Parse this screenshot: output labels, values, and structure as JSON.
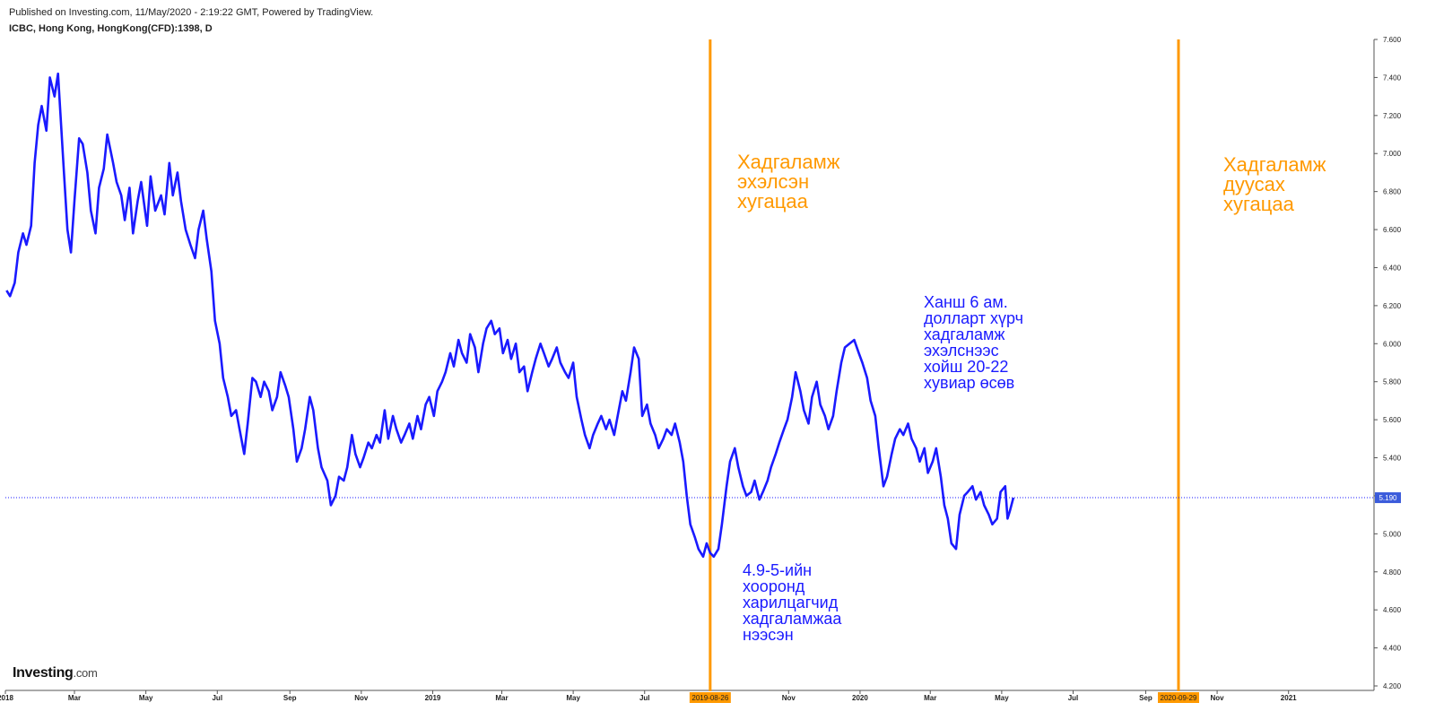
{
  "header": {
    "published": "Published on Investing.com, 11/May/2020 - 2:19:22 GMT, Powered by TradingView.",
    "symbol": "ICBC, Hong Kong, HongKong(CFD):1398, D"
  },
  "logo": {
    "main": "Investing",
    "suffix": ".com"
  },
  "colors": {
    "price_line": "#1a1aff",
    "event_line": "#ff9900",
    "last_price_badge": "#3b5bdb"
  },
  "chart_data": {
    "type": "line",
    "ylim": [
      4.2,
      7.6
    ],
    "xlim": [
      "2018-01-01",
      "2021-03-15"
    ],
    "grid": false,
    "y_ticks": [
      "7.600",
      "7.400",
      "7.200",
      "7.000",
      "6.800",
      "6.600",
      "6.400",
      "6.200",
      "6.000",
      "5.800",
      "5.600",
      "5.400",
      "5.200",
      "5.000",
      "4.800",
      "4.600",
      "4.400",
      "4.200"
    ],
    "x_ticks": [
      {
        "label": "2018",
        "date": "2018-01-01"
      },
      {
        "label": "Mar",
        "date": "2018-03-01"
      },
      {
        "label": "May",
        "date": "2018-05-01"
      },
      {
        "label": "Jul",
        "date": "2018-07-01"
      },
      {
        "label": "Sep",
        "date": "2018-09-01"
      },
      {
        "label": "Nov",
        "date": "2018-11-01"
      },
      {
        "label": "2019",
        "date": "2019-01-01"
      },
      {
        "label": "Mar",
        "date": "2019-03-01"
      },
      {
        "label": "May",
        "date": "2019-05-01"
      },
      {
        "label": "Jul",
        "date": "2019-07-01"
      },
      {
        "label": "Nov",
        "date": "2019-11-01"
      },
      {
        "label": "2020",
        "date": "2020-01-01"
      },
      {
        "label": "Mar",
        "date": "2020-03-01"
      },
      {
        "label": "May",
        "date": "2020-05-01"
      },
      {
        "label": "Jul",
        "date": "2020-07-01"
      },
      {
        "label": "Sep",
        "date": "2020-09-01"
      },
      {
        "label": "Nov",
        "date": "2020-11-01"
      },
      {
        "label": "2021",
        "date": "2021-01-01"
      }
    ],
    "last_price": {
      "value": 5.19,
      "label": "5.190"
    },
    "events": [
      {
        "date": "2019-08-26",
        "label": "2019-08-26",
        "text": "Хадгаламж\nэхэлсэн\nхугацаа"
      },
      {
        "date": "2020-09-29",
        "label": "2020-09-29",
        "text": "Хадгаламж\nдуусах\nхугацаа"
      }
    ],
    "annotations": [
      {
        "text": "4.9-5-ийн\nхооронд\nхарилцагчид\nхадгаламжаа\nнээсэн"
      },
      {
        "text": "Ханш 6 ам.\nдолларт хүрч\nхадгаламж\nэхэлснээс\nхойш 20-22\nхувиар өсөв"
      }
    ],
    "series": [
      {
        "points": [
          [
            "2018-01-02",
            6.28
          ],
          [
            "2018-01-05",
            6.25
          ],
          [
            "2018-01-09",
            6.32
          ],
          [
            "2018-01-12",
            6.48
          ],
          [
            "2018-01-16",
            6.58
          ],
          [
            "2018-01-19",
            6.52
          ],
          [
            "2018-01-23",
            6.62
          ],
          [
            "2018-01-26",
            6.95
          ],
          [
            "2018-01-29",
            7.15
          ],
          [
            "2018-02-01",
            7.25
          ],
          [
            "2018-02-05",
            7.12
          ],
          [
            "2018-02-08",
            7.4
          ],
          [
            "2018-02-12",
            7.3
          ],
          [
            "2018-02-15",
            7.42
          ],
          [
            "2018-02-20",
            6.9
          ],
          [
            "2018-02-23",
            6.6
          ],
          [
            "2018-02-26",
            6.48
          ],
          [
            "2018-03-01",
            6.75
          ],
          [
            "2018-03-05",
            7.08
          ],
          [
            "2018-03-08",
            7.05
          ],
          [
            "2018-03-12",
            6.9
          ],
          [
            "2018-03-15",
            6.7
          ],
          [
            "2018-03-19",
            6.58
          ],
          [
            "2018-03-22",
            6.82
          ],
          [
            "2018-03-26",
            6.92
          ],
          [
            "2018-03-29",
            7.1
          ],
          [
            "2018-04-03",
            6.95
          ],
          [
            "2018-04-06",
            6.85
          ],
          [
            "2018-04-10",
            6.78
          ],
          [
            "2018-04-13",
            6.65
          ],
          [
            "2018-04-17",
            6.82
          ],
          [
            "2018-04-20",
            6.58
          ],
          [
            "2018-04-24",
            6.75
          ],
          [
            "2018-04-27",
            6.85
          ],
          [
            "2018-05-02",
            6.62
          ],
          [
            "2018-05-05",
            6.88
          ],
          [
            "2018-05-09",
            6.7
          ],
          [
            "2018-05-14",
            6.78
          ],
          [
            "2018-05-17",
            6.68
          ],
          [
            "2018-05-21",
            6.95
          ],
          [
            "2018-05-24",
            6.78
          ],
          [
            "2018-05-28",
            6.9
          ],
          [
            "2018-05-31",
            6.75
          ],
          [
            "2018-06-04",
            6.6
          ],
          [
            "2018-06-08",
            6.52
          ],
          [
            "2018-06-12",
            6.45
          ],
          [
            "2018-06-15",
            6.6
          ],
          [
            "2018-06-19",
            6.7
          ],
          [
            "2018-06-22",
            6.55
          ],
          [
            "2018-06-26",
            6.38
          ],
          [
            "2018-06-29",
            6.12
          ],
          [
            "2018-07-03",
            6.0
          ],
          [
            "2018-07-06",
            5.82
          ],
          [
            "2018-07-10",
            5.72
          ],
          [
            "2018-07-13",
            5.62
          ],
          [
            "2018-07-17",
            5.65
          ],
          [
            "2018-07-20",
            5.55
          ],
          [
            "2018-07-24",
            5.42
          ],
          [
            "2018-07-27",
            5.58
          ],
          [
            "2018-07-31",
            5.82
          ],
          [
            "2018-08-03",
            5.8
          ],
          [
            "2018-08-07",
            5.72
          ],
          [
            "2018-08-10",
            5.8
          ],
          [
            "2018-08-14",
            5.75
          ],
          [
            "2018-08-17",
            5.65
          ],
          [
            "2018-08-21",
            5.72
          ],
          [
            "2018-08-24",
            5.85
          ],
          [
            "2018-08-28",
            5.78
          ],
          [
            "2018-08-31",
            5.72
          ],
          [
            "2018-09-04",
            5.55
          ],
          [
            "2018-09-07",
            5.38
          ],
          [
            "2018-09-11",
            5.45
          ],
          [
            "2018-09-14",
            5.55
          ],
          [
            "2018-09-18",
            5.72
          ],
          [
            "2018-09-21",
            5.65
          ],
          [
            "2018-09-25",
            5.45
          ],
          [
            "2018-09-28",
            5.35
          ],
          [
            "2018-10-03",
            5.28
          ],
          [
            "2018-10-06",
            5.15
          ],
          [
            "2018-10-10",
            5.2
          ],
          [
            "2018-10-13",
            5.3
          ],
          [
            "2018-10-17",
            5.28
          ],
          [
            "2018-10-20",
            5.35
          ],
          [
            "2018-10-24",
            5.52
          ],
          [
            "2018-10-27",
            5.42
          ],
          [
            "2018-10-31",
            5.35
          ],
          [
            "2018-11-03",
            5.4
          ],
          [
            "2018-11-07",
            5.48
          ],
          [
            "2018-11-10",
            5.45
          ],
          [
            "2018-11-14",
            5.52
          ],
          [
            "2018-11-17",
            5.48
          ],
          [
            "2018-11-21",
            5.65
          ],
          [
            "2018-11-24",
            5.5
          ],
          [
            "2018-11-28",
            5.62
          ],
          [
            "2018-12-01",
            5.55
          ],
          [
            "2018-12-05",
            5.48
          ],
          [
            "2018-12-08",
            5.52
          ],
          [
            "2018-12-12",
            5.58
          ],
          [
            "2018-12-15",
            5.5
          ],
          [
            "2018-12-19",
            5.62
          ],
          [
            "2018-12-22",
            5.55
          ],
          [
            "2018-12-26",
            5.68
          ],
          [
            "2018-12-29",
            5.72
          ],
          [
            "2019-01-02",
            5.62
          ],
          [
            "2019-01-05",
            5.75
          ],
          [
            "2019-01-09",
            5.8
          ],
          [
            "2019-01-12",
            5.85
          ],
          [
            "2019-01-16",
            5.95
          ],
          [
            "2019-01-19",
            5.88
          ],
          [
            "2019-01-23",
            6.02
          ],
          [
            "2019-01-26",
            5.95
          ],
          [
            "2019-01-30",
            5.9
          ],
          [
            "2019-02-02",
            6.05
          ],
          [
            "2019-02-06",
            5.98
          ],
          [
            "2019-02-09",
            5.85
          ],
          [
            "2019-02-13",
            6.0
          ],
          [
            "2019-02-16",
            6.08
          ],
          [
            "2019-02-20",
            6.12
          ],
          [
            "2019-02-23",
            6.05
          ],
          [
            "2019-02-27",
            6.08
          ],
          [
            "2019-03-02",
            5.95
          ],
          [
            "2019-03-06",
            6.02
          ],
          [
            "2019-03-09",
            5.92
          ],
          [
            "2019-03-13",
            6.0
          ],
          [
            "2019-03-16",
            5.85
          ],
          [
            "2019-03-20",
            5.88
          ],
          [
            "2019-03-23",
            5.75
          ],
          [
            "2019-03-27",
            5.85
          ],
          [
            "2019-03-30",
            5.92
          ],
          [
            "2019-04-03",
            6.0
          ],
          [
            "2019-04-06",
            5.95
          ],
          [
            "2019-04-10",
            5.88
          ],
          [
            "2019-04-13",
            5.92
          ],
          [
            "2019-04-17",
            5.98
          ],
          [
            "2019-04-20",
            5.9
          ],
          [
            "2019-04-24",
            5.85
          ],
          [
            "2019-04-27",
            5.82
          ],
          [
            "2019-05-01",
            5.9
          ],
          [
            "2019-05-04",
            5.72
          ],
          [
            "2019-05-08",
            5.6
          ],
          [
            "2019-05-11",
            5.52
          ],
          [
            "2019-05-15",
            5.45
          ],
          [
            "2019-05-18",
            5.52
          ],
          [
            "2019-05-22",
            5.58
          ],
          [
            "2019-05-25",
            5.62
          ],
          [
            "2019-05-29",
            5.55
          ],
          [
            "2019-06-01",
            5.6
          ],
          [
            "2019-06-05",
            5.52
          ],
          [
            "2019-06-08",
            5.62
          ],
          [
            "2019-06-12",
            5.75
          ],
          [
            "2019-06-15",
            5.7
          ],
          [
            "2019-06-19",
            5.85
          ],
          [
            "2019-06-22",
            5.98
          ],
          [
            "2019-06-26",
            5.92
          ],
          [
            "2019-06-29",
            5.62
          ],
          [
            "2019-07-03",
            5.68
          ],
          [
            "2019-07-06",
            5.58
          ],
          [
            "2019-07-10",
            5.52
          ],
          [
            "2019-07-13",
            5.45
          ],
          [
            "2019-07-17",
            5.5
          ],
          [
            "2019-07-20",
            5.55
          ],
          [
            "2019-07-24",
            5.52
          ],
          [
            "2019-07-27",
            5.58
          ],
          [
            "2019-07-31",
            5.48
          ],
          [
            "2019-08-03",
            5.38
          ],
          [
            "2019-08-06",
            5.2
          ],
          [
            "2019-08-09",
            5.05
          ],
          [
            "2019-08-13",
            4.98
          ],
          [
            "2019-08-16",
            4.92
          ],
          [
            "2019-08-20",
            4.88
          ],
          [
            "2019-08-23",
            4.95
          ],
          [
            "2019-08-26",
            4.9
          ],
          [
            "2019-08-29",
            4.88
          ],
          [
            "2019-09-02",
            4.92
          ],
          [
            "2019-09-05",
            5.05
          ],
          [
            "2019-09-09",
            5.25
          ],
          [
            "2019-09-12",
            5.38
          ],
          [
            "2019-09-16",
            5.45
          ],
          [
            "2019-09-19",
            5.35
          ],
          [
            "2019-09-23",
            5.25
          ],
          [
            "2019-09-26",
            5.2
          ],
          [
            "2019-09-30",
            5.22
          ],
          [
            "2019-10-03",
            5.28
          ],
          [
            "2019-10-07",
            5.18
          ],
          [
            "2019-10-10",
            5.22
          ],
          [
            "2019-10-14",
            5.28
          ],
          [
            "2019-10-17",
            5.35
          ],
          [
            "2019-10-21",
            5.42
          ],
          [
            "2019-10-24",
            5.48
          ],
          [
            "2019-10-28",
            5.55
          ],
          [
            "2019-10-31",
            5.6
          ],
          [
            "2019-11-04",
            5.72
          ],
          [
            "2019-11-07",
            5.85
          ],
          [
            "2019-11-11",
            5.75
          ],
          [
            "2019-11-14",
            5.65
          ],
          [
            "2019-11-18",
            5.58
          ],
          [
            "2019-11-21",
            5.72
          ],
          [
            "2019-11-25",
            5.8
          ],
          [
            "2019-11-28",
            5.68
          ],
          [
            "2019-12-02",
            5.62
          ],
          [
            "2019-12-05",
            5.55
          ],
          [
            "2019-12-09",
            5.62
          ],
          [
            "2019-12-12",
            5.75
          ],
          [
            "2019-12-16",
            5.9
          ],
          [
            "2019-12-19",
            5.98
          ],
          [
            "2019-12-23",
            6.0
          ],
          [
            "2019-12-27",
            6.02
          ],
          [
            "2019-12-31",
            5.95
          ],
          [
            "2020-01-03",
            5.9
          ],
          [
            "2020-01-07",
            5.82
          ],
          [
            "2020-01-10",
            5.7
          ],
          [
            "2020-01-14",
            5.62
          ],
          [
            "2020-01-17",
            5.45
          ],
          [
            "2020-01-21",
            5.25
          ],
          [
            "2020-01-24",
            5.3
          ],
          [
            "2020-01-28",
            5.42
          ],
          [
            "2020-01-31",
            5.5
          ],
          [
            "2020-02-04",
            5.55
          ],
          [
            "2020-02-07",
            5.52
          ],
          [
            "2020-02-11",
            5.58
          ],
          [
            "2020-02-14",
            5.5
          ],
          [
            "2020-02-18",
            5.45
          ],
          [
            "2020-02-21",
            5.38
          ],
          [
            "2020-02-25",
            5.45
          ],
          [
            "2020-02-28",
            5.32
          ],
          [
            "2020-03-03",
            5.38
          ],
          [
            "2020-03-06",
            5.45
          ],
          [
            "2020-03-10",
            5.3
          ],
          [
            "2020-03-13",
            5.15
          ],
          [
            "2020-03-16",
            5.08
          ],
          [
            "2020-03-19",
            4.95
          ],
          [
            "2020-03-23",
            4.92
          ],
          [
            "2020-03-26",
            5.1
          ],
          [
            "2020-03-30",
            5.2
          ],
          [
            "2020-04-02",
            5.22
          ],
          [
            "2020-04-06",
            5.25
          ],
          [
            "2020-04-09",
            5.18
          ],
          [
            "2020-04-13",
            5.22
          ],
          [
            "2020-04-16",
            5.15
          ],
          [
            "2020-04-20",
            5.1
          ],
          [
            "2020-04-23",
            5.05
          ],
          [
            "2020-04-27",
            5.08
          ],
          [
            "2020-04-30",
            5.22
          ],
          [
            "2020-05-04",
            5.25
          ],
          [
            "2020-05-06",
            5.08
          ],
          [
            "2020-05-08",
            5.12
          ],
          [
            "2020-05-11",
            5.19
          ]
        ]
      }
    ]
  }
}
